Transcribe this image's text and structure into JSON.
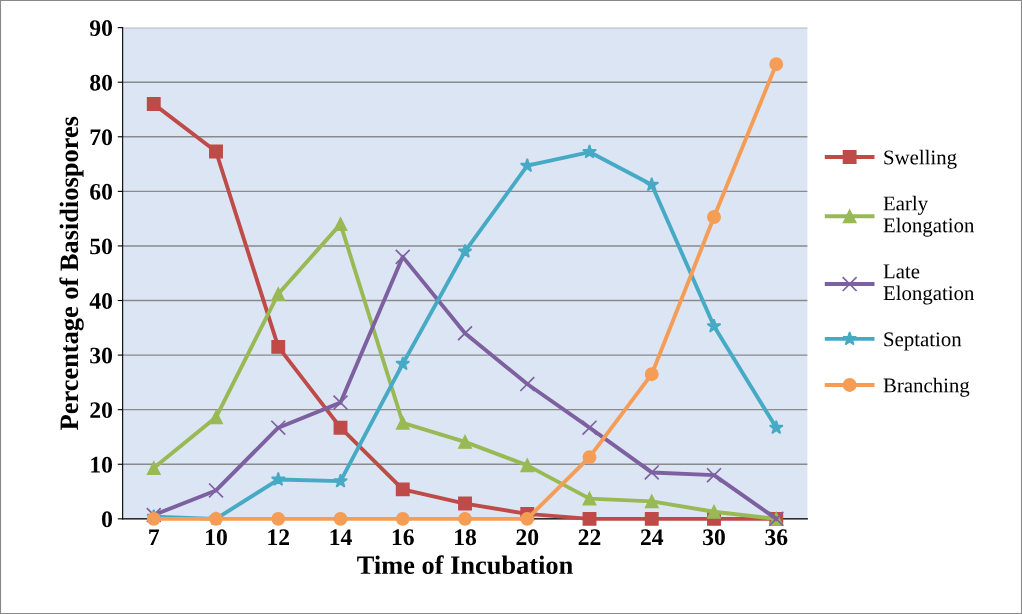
{
  "chart_data": {
    "type": "line",
    "xlabel": "Time of Incubation",
    "ylabel": "Percentage of Basidiospores",
    "categories": [
      "7",
      "10",
      "12",
      "14",
      "16",
      "18",
      "20",
      "22",
      "24",
      "30",
      "36"
    ],
    "ylim": [
      0,
      90
    ],
    "yticks": [
      0,
      10,
      20,
      30,
      40,
      50,
      60,
      70,
      80,
      90
    ],
    "grid": "y",
    "legend": "right",
    "series": [
      {
        "name": "Swelling",
        "color": "#be4b48",
        "marker": "square",
        "values": [
          76,
          67.3,
          31.5,
          16.7,
          5.4,
          2.8,
          0.9,
          0,
          0,
          0,
          0
        ]
      },
      {
        "name": "Early Elongation",
        "color": "#98b954",
        "marker": "triangle",
        "values": [
          9.3,
          18.6,
          41.2,
          54,
          17.6,
          14.1,
          9.8,
          3.7,
          3.2,
          1.3,
          0
        ]
      },
      {
        "name": "Late Elongation",
        "color": "#7d60a0",
        "marker": "cross",
        "values": [
          0.7,
          5.2,
          16.7,
          21.3,
          48,
          34,
          24.7,
          16.7,
          8.5,
          8,
          0
        ]
      },
      {
        "name": "Septation",
        "color": "#46aac5",
        "marker": "star",
        "values": [
          0.4,
          0,
          7.2,
          6.9,
          28.4,
          49,
          64.7,
          67.2,
          61.2,
          35.3,
          16.7
        ]
      },
      {
        "name": "Branching",
        "color": "#f59d56",
        "marker": "circle",
        "values": [
          0,
          0,
          0,
          0,
          0,
          0,
          0,
          11.3,
          26.5,
          55.3,
          83.3
        ]
      }
    ]
  }
}
